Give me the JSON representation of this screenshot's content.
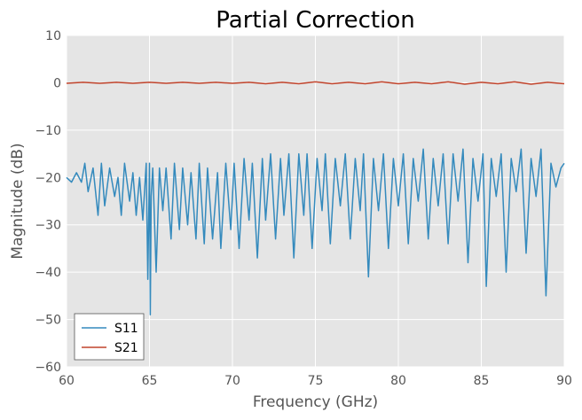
{
  "chart_data": {
    "type": "line",
    "title": "Partial Correction",
    "xlabel": "Frequency (GHz)",
    "ylabel": "Magnitude (dB)",
    "xlim": [
      60,
      90
    ],
    "ylim": [
      -60,
      10
    ],
    "x_ticks": [
      "60",
      "65",
      "70",
      "75",
      "80",
      "85",
      "90"
    ],
    "y_ticks": [
      "10",
      "0",
      "−10",
      "−20",
      "−30",
      "−40",
      "−50",
      "−60"
    ],
    "grid": true,
    "legend_position": "lower-left",
    "background": "#e5e5e5",
    "series": [
      {
        "name": "S11",
        "color": "#348abd",
        "x": [
          60.0,
          60.3,
          60.6,
          60.9,
          61.1,
          61.3,
          61.6,
          61.9,
          62.1,
          62.3,
          62.6,
          62.9,
          63.1,
          63.3,
          63.5,
          63.8,
          64.0,
          64.2,
          64.4,
          64.6,
          64.8,
          64.9,
          65.0,
          65.05,
          65.1,
          65.2,
          65.4,
          65.6,
          65.8,
          66.0,
          66.3,
          66.5,
          66.8,
          67.0,
          67.3,
          67.5,
          67.8,
          68.0,
          68.3,
          68.5,
          68.8,
          69.1,
          69.3,
          69.6,
          69.9,
          70.1,
          70.4,
          70.7,
          71.0,
          71.2,
          71.5,
          71.8,
          72.0,
          72.3,
          72.6,
          72.9,
          73.1,
          73.4,
          73.7,
          74.0,
          74.3,
          74.5,
          74.8,
          75.1,
          75.4,
          75.6,
          75.9,
          76.2,
          76.5,
          76.8,
          77.1,
          77.4,
          77.7,
          77.9,
          78.2,
          78.5,
          78.8,
          79.1,
          79.4,
          79.7,
          80.0,
          80.3,
          80.6,
          80.9,
          81.2,
          81.5,
          81.8,
          82.1,
          82.4,
          82.7,
          83.0,
          83.3,
          83.6,
          83.9,
          84.2,
          84.5,
          84.8,
          85.1,
          85.3,
          85.6,
          85.9,
          86.2,
          86.5,
          86.8,
          87.1,
          87.4,
          87.7,
          88.0,
          88.3,
          88.6,
          88.9,
          89.2,
          89.5,
          89.8,
          90.0
        ],
        "values": [
          -20,
          -21,
          -19,
          -21,
          -17,
          -23,
          -18,
          -28,
          -17,
          -26,
          -18,
          -24,
          -20,
          -28,
          -17,
          -25,
          -19,
          -28,
          -20,
          -29,
          -17,
          -41.5,
          -17,
          -49,
          -24,
          -18,
          -40,
          -18,
          -27,
          -18,
          -33,
          -17,
          -31,
          -18,
          -30,
          -19,
          -33,
          -17,
          -34,
          -18,
          -33,
          -19,
          -35,
          -17,
          -31,
          -17,
          -35,
          -16,
          -29,
          -17,
          -37,
          -16,
          -29,
          -15,
          -33,
          -16,
          -28,
          -15,
          -37,
          -15,
          -28,
          -15,
          -35,
          -16,
          -27,
          -15,
          -34,
          -16,
          -26,
          -15,
          -33,
          -16,
          -27,
          -15,
          -41,
          -16,
          -27,
          -15,
          -35,
          -16,
          -26,
          -15,
          -34,
          -16,
          -25,
          -14,
          -33,
          -16,
          -26,
          -15,
          -34,
          -15,
          -25,
          -14,
          -38,
          -16,
          -25,
          -15,
          -43,
          -16,
          -24,
          -15,
          -40,
          -16,
          -23,
          -14,
          -36,
          -16,
          -24,
          -14,
          -45,
          -17,
          -22,
          -18,
          -17
        ]
      },
      {
        "name": "S21",
        "color": "#c0432b",
        "x": [
          60,
          61,
          62,
          63,
          64,
          65,
          66,
          67,
          68,
          69,
          70,
          71,
          72,
          73,
          74,
          75,
          76,
          77,
          78,
          79,
          80,
          81,
          82,
          83,
          84,
          85,
          86,
          87,
          88,
          89,
          90
        ],
        "values": [
          -0.1,
          0.1,
          -0.1,
          0.1,
          -0.1,
          0.1,
          -0.1,
          0.1,
          -0.1,
          0.1,
          -0.1,
          0.1,
          -0.2,
          0.1,
          -0.2,
          0.2,
          -0.2,
          0.1,
          -0.2,
          0.2,
          -0.2,
          0.1,
          -0.2,
          0.2,
          -0.3,
          0.1,
          -0.2,
          0.2,
          -0.3,
          0.1,
          -0.2
        ]
      }
    ]
  }
}
